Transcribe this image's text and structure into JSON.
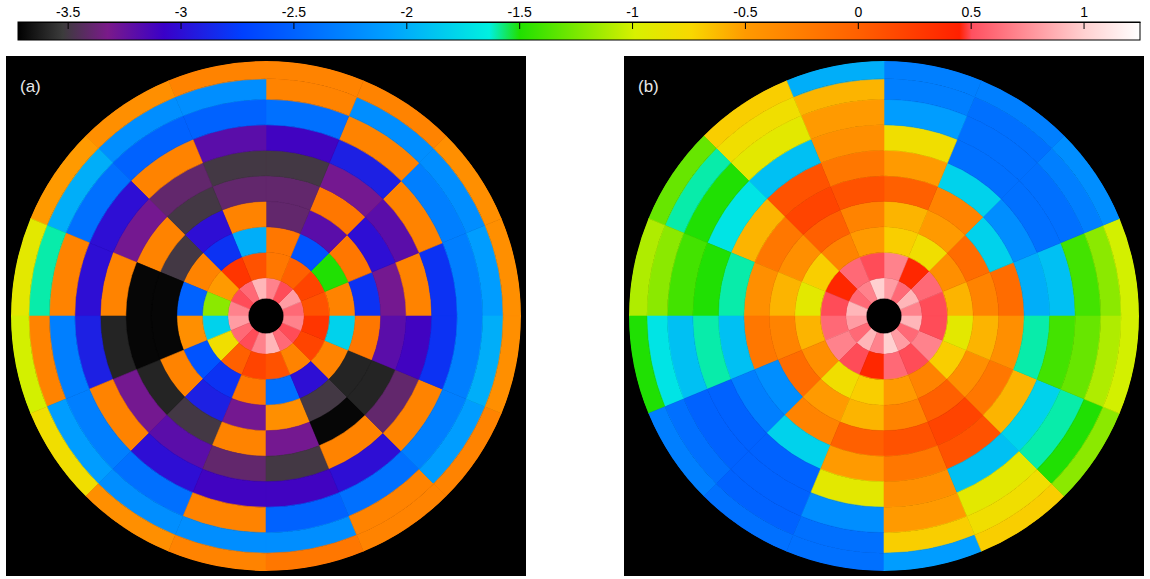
{
  "chart_data": {
    "type": "heatmap",
    "colorbar": {
      "range": [
        -3.72,
        1.25
      ],
      "ticks": [
        -3.5,
        -3,
        -2.5,
        -2,
        -1.5,
        -1,
        -0.5,
        0,
        0.5,
        1
      ]
    },
    "panels": [
      {
        "label": "(a)",
        "rlim": [
          0,
          1
        ],
        "r_edges": [
          0.07,
          0.15,
          0.25,
          0.35,
          0.45,
          0.55,
          0.65,
          0.75,
          0.85,
          0.93,
          1.0
        ],
        "theta_edges": [
          0,
          22.5,
          45,
          67.5,
          90,
          112.5,
          135,
          157.5,
          180,
          202.5,
          225,
          247.5,
          270,
          292.5,
          315,
          337.5,
          360
        ],
        "cells": [
          [
            0.6,
            0.8,
            0.5,
            0.7,
            0.9,
            0.6,
            0.5,
            0.7,
            0.8,
            0.6,
            0.5,
            0.7,
            0.9,
            0.6,
            0.5,
            0.7
          ],
          [
            0.1,
            0.2,
            0.0,
            -0.2,
            0.1,
            0.3,
            -0.5,
            -1.2,
            -1.8,
            -0.8,
            0.0,
            0.2,
            0.1,
            -0.3,
            0.2,
            0.3
          ],
          [
            -0.3,
            -1.5,
            -2.6,
            -0.2,
            -2.0,
            -2.8,
            -0.3,
            -2.5,
            -0.4,
            -2.6,
            -2.8,
            -0.2,
            -2.4,
            -3.0,
            -0.3,
            -1.8
          ],
          [
            -2.8,
            -0.2,
            -3.2,
            -3.4,
            -0.3,
            -3.0,
            -3.5,
            -3.7,
            -3.7,
            -0.3,
            -2.9,
            -3.3,
            -0.4,
            -3.5,
            -3.6,
            -0.2
          ],
          [
            -3.3,
            -3.0,
            -0.2,
            -3.4,
            -3.4,
            -3.5,
            -0.3,
            -3.7,
            -3.7,
            -3.6,
            -3.5,
            -0.3,
            -3.3,
            -3.7,
            -3.6,
            -3.2
          ],
          [
            -0.3,
            -3.2,
            -3.3,
            -3.5,
            -3.5,
            -3.4,
            -3.3,
            -0.3,
            -3.6,
            -3.3,
            -3.2,
            -3.4,
            -3.5,
            -0.3,
            -3.4,
            -3.1
          ],
          [
            -2.8,
            -0.3,
            -2.9,
            -3.1,
            -3.2,
            -0.3,
            -3.0,
            -3.0,
            -2.9,
            -0.3,
            -3.0,
            -3.1,
            -3.1,
            -3.0,
            -0.3,
            -2.8
          ],
          [
            -2.3,
            -2.3,
            -0.3,
            -2.4,
            -2.5,
            -2.5,
            -2.4,
            -0.3,
            -2.3,
            -2.3,
            -2.4,
            -0.3,
            -2.5,
            -2.4,
            -2.3,
            -2.3
          ],
          [
            -2.1,
            -2.2,
            -2.2,
            -0.3,
            -2.2,
            -2.2,
            -2.0,
            -1.6,
            -0.3,
            -2.1,
            -2.2,
            -2.2,
            -2.2,
            -0.3,
            -2.1,
            -2.0
          ],
          [
            -0.4,
            -0.4,
            -0.3,
            -0.3,
            -0.3,
            -0.4,
            -0.5,
            -0.9,
            -1.0,
            -0.8,
            -0.4,
            -0.3,
            -0.2,
            -0.3,
            -0.3,
            -0.4
          ]
        ]
      },
      {
        "label": "(b)",
        "rlim": [
          0,
          1
        ],
        "r_edges": [
          0.07,
          0.15,
          0.25,
          0.35,
          0.45,
          0.55,
          0.65,
          0.75,
          0.85,
          0.93,
          1.0
        ],
        "theta_edges": [
          0,
          22.5,
          45,
          67.5,
          90,
          112.5,
          135,
          157.5,
          180,
          202.5,
          225,
          247.5,
          270,
          292.5,
          315,
          337.5,
          360
        ],
        "cells": [
          [
            0.7,
            0.9,
            0.6,
            0.8,
            1.0,
            0.7,
            0.6,
            0.9,
            0.8,
            0.6,
            0.9,
            0.7,
            1.0,
            0.8,
            0.6,
            0.9
          ],
          [
            0.5,
            0.6,
            0.4,
            0.7,
            0.5,
            0.6,
            0.4,
            0.5,
            0.6,
            0.7,
            0.5,
            0.4,
            0.6,
            0.5,
            0.7,
            0.5
          ],
          [
            -0.6,
            -0.4,
            -0.8,
            -0.7,
            -0.5,
            -0.3,
            -0.7,
            -0.9,
            -0.6,
            -0.4,
            -0.8,
            -0.7,
            -0.5,
            -0.3,
            -0.7,
            -0.9
          ],
          [
            -0.3,
            -0.1,
            -0.5,
            -0.6,
            -0.3,
            0.0,
            -0.4,
            -0.6,
            -0.3,
            -0.1,
            -0.5,
            -0.6,
            -0.3,
            0.0,
            -0.4,
            -0.6
          ],
          [
            -0.1,
            -1.8,
            -0.3,
            0.0,
            0.1,
            0.2,
            -0.2,
            -0.4,
            -0.2,
            -2.2,
            -0.3,
            0.0,
            0.1,
            0.2,
            -0.2,
            -0.4
          ],
          [
            -2.0,
            -2.2,
            -1.8,
            -0.5,
            -0.2,
            0.1,
            -0.6,
            -1.6,
            -1.9,
            -2.3,
            -1.8,
            -0.5,
            -0.2,
            0.1,
            -0.6,
            -1.6
          ],
          [
            -1.9,
            -2.4,
            -2.4,
            -0.8,
            -0.4,
            -1.9,
            -1.7,
            -1.5,
            -1.6,
            -2.5,
            -2.5,
            -0.9,
            -0.4,
            -1.9,
            -1.8,
            -1.4
          ],
          [
            -1.4,
            -2.4,
            -2.4,
            -2.1,
            -0.5,
            -0.9,
            -1.5,
            -1.4,
            -1.9,
            -2.5,
            -2.5,
            -2.2,
            -0.5,
            -0.9,
            -1.6,
            -1.3
          ],
          [
            -1.2,
            -2.3,
            -2.4,
            -2.3,
            -0.6,
            -0.8,
            -1.6,
            -1.2,
            -1.7,
            -2.4,
            -2.5,
            -2.4,
            -0.7,
            -0.8,
            -1.5,
            -1.1
          ],
          [
            -1.0,
            -2.2,
            -2.3,
            -2.3,
            -2.0,
            -0.7,
            -1.3,
            -1.1,
            -1.5,
            -2.3,
            -2.4,
            -2.4,
            -2.1,
            -0.7,
            -1.2,
            -1.0
          ]
        ]
      }
    ]
  }
}
